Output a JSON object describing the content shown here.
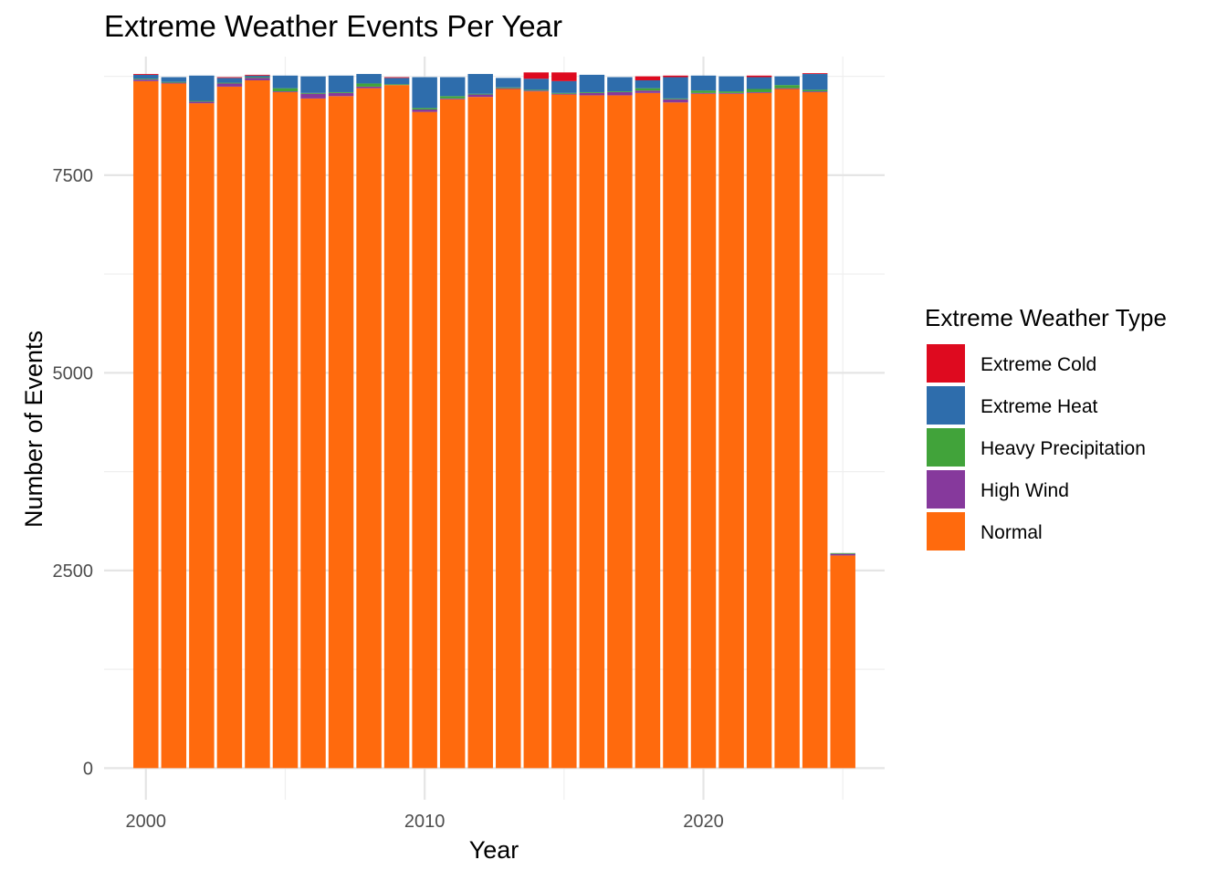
{
  "chart_data": {
    "type": "bar",
    "stacked": true,
    "title": "Extreme Weather Events Per Year",
    "xlabel": "Year",
    "ylabel": "Number of Events",
    "x": [
      2000,
      2001,
      2002,
      2003,
      2004,
      2005,
      2006,
      2007,
      2008,
      2009,
      2010,
      2011,
      2012,
      2013,
      2014,
      2015,
      2016,
      2017,
      2018,
      2019,
      2020,
      2021,
      2022,
      2023,
      2024,
      2025
    ],
    "xlim": [
      1998.5,
      2026.5
    ],
    "ylim": [
      -400,
      9000
    ],
    "x_ticks": [
      2000,
      2010,
      2020
    ],
    "y_ticks": [
      0,
      2500,
      5000,
      7500
    ],
    "grid": true,
    "legend_title": "Extreme Weather Type",
    "legend_position": "right",
    "series": [
      {
        "name": "Normal",
        "color": "#FF6A0D",
        "values": [
          8690,
          8660,
          8410,
          8620,
          8700,
          8550,
          8470,
          8500,
          8600,
          8640,
          8300,
          8460,
          8490,
          8590,
          8560,
          8520,
          8510,
          8510,
          8540,
          8420,
          8530,
          8530,
          8540,
          8590,
          8550,
          2690
        ]
      },
      {
        "name": "High Wind",
        "color": "#86399C",
        "values": [
          20,
          10,
          20,
          40,
          30,
          10,
          60,
          40,
          20,
          0,
          30,
          10,
          30,
          10,
          10,
          10,
          30,
          40,
          30,
          40,
          10,
          10,
          10,
          10,
          10,
          20
        ]
      },
      {
        "name": "Heavy Precipitation",
        "color": "#41A33A",
        "values": [
          10,
          10,
          10,
          10,
          10,
          40,
          10,
          10,
          40,
          10,
          20,
          30,
          10,
          10,
          10,
          10,
          10,
          10,
          30,
          10,
          30,
          20,
          40,
          40,
          20,
          10
        ]
      },
      {
        "name": "Extreme Heat",
        "color": "#2E6DAC",
        "values": [
          50,
          60,
          320,
          60,
          20,
          160,
          210,
          210,
          120,
          80,
          390,
          240,
          250,
          120,
          140,
          150,
          220,
          180,
          100,
          270,
          190,
          190,
          150,
          110,
          200,
          0
        ]
      },
      {
        "name": "Extreme Cold",
        "color": "#DE0A1F",
        "values": [
          10,
          0,
          0,
          10,
          10,
          0,
          0,
          0,
          0,
          10,
          0,
          0,
          0,
          0,
          80,
          110,
          0,
          0,
          50,
          20,
          0,
          0,
          20,
          0,
          10,
          0
        ]
      }
    ],
    "legend_order": [
      "Extreme Cold",
      "Extreme Heat",
      "Heavy Precipitation",
      "High Wind",
      "Normal"
    ]
  }
}
